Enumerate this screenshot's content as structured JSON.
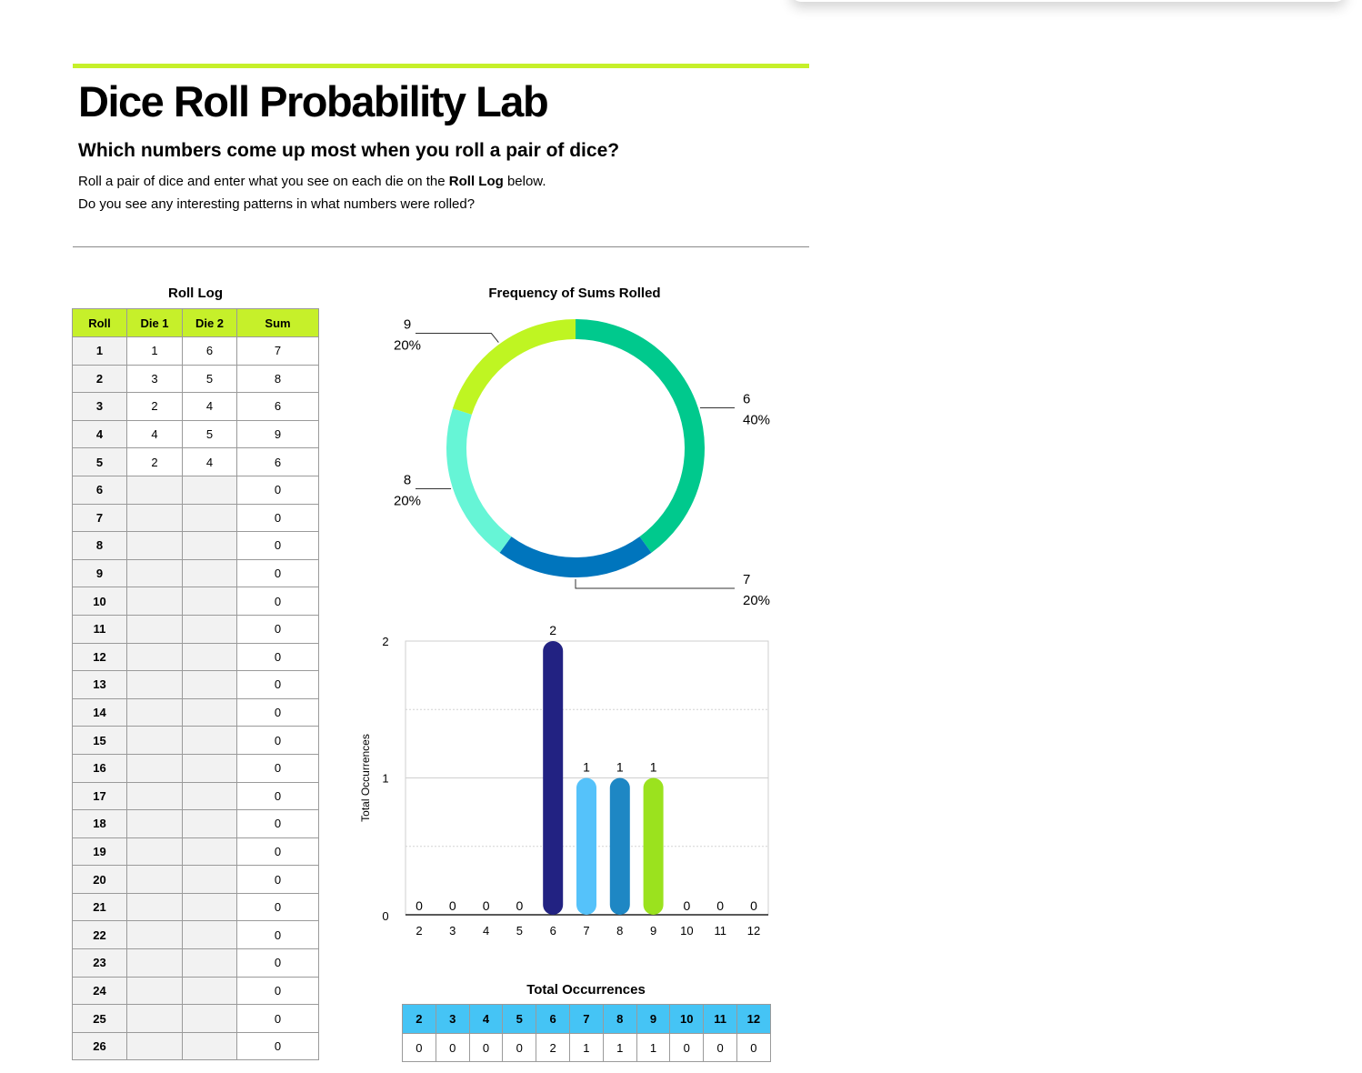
{
  "page": {
    "title": "Dice Roll Probability Lab",
    "subtitle": "Which numbers come up most when you roll a pair of dice?",
    "intro_before": "Roll a pair of dice and enter what you see on each die on the ",
    "intro_bold": "Roll Log",
    "intro_after": " below.",
    "question": "Do you see any interesting patterns in what numbers were rolled?"
  },
  "roll_log": {
    "title": "Roll Log",
    "headers": [
      "Roll",
      "Die 1",
      "Die 2",
      "Sum"
    ],
    "rows": [
      {
        "roll": "1",
        "die1": "1",
        "die2": "6",
        "sum": "7"
      },
      {
        "roll": "2",
        "die1": "3",
        "die2": "5",
        "sum": "8"
      },
      {
        "roll": "3",
        "die1": "2",
        "die2": "4",
        "sum": "6"
      },
      {
        "roll": "4",
        "die1": "4",
        "die2": "5",
        "sum": "9"
      },
      {
        "roll": "5",
        "die1": "2",
        "die2": "4",
        "sum": "6"
      },
      {
        "roll": "6",
        "die1": "",
        "die2": "",
        "sum": "0"
      },
      {
        "roll": "7",
        "die1": "",
        "die2": "",
        "sum": "0"
      },
      {
        "roll": "8",
        "die1": "",
        "die2": "",
        "sum": "0"
      },
      {
        "roll": "9",
        "die1": "",
        "die2": "",
        "sum": "0"
      },
      {
        "roll": "10",
        "die1": "",
        "die2": "",
        "sum": "0"
      },
      {
        "roll": "11",
        "die1": "",
        "die2": "",
        "sum": "0"
      },
      {
        "roll": "12",
        "die1": "",
        "die2": "",
        "sum": "0"
      },
      {
        "roll": "13",
        "die1": "",
        "die2": "",
        "sum": "0"
      },
      {
        "roll": "14",
        "die1": "",
        "die2": "",
        "sum": "0"
      },
      {
        "roll": "15",
        "die1": "",
        "die2": "",
        "sum": "0"
      },
      {
        "roll": "16",
        "die1": "",
        "die2": "",
        "sum": "0"
      },
      {
        "roll": "17",
        "die1": "",
        "die2": "",
        "sum": "0"
      },
      {
        "roll": "18",
        "die1": "",
        "die2": "",
        "sum": "0"
      },
      {
        "roll": "19",
        "die1": "",
        "die2": "",
        "sum": "0"
      },
      {
        "roll": "20",
        "die1": "",
        "die2": "",
        "sum": "0"
      },
      {
        "roll": "21",
        "die1": "",
        "die2": "",
        "sum": "0"
      },
      {
        "roll": "22",
        "die1": "",
        "die2": "",
        "sum": "0"
      },
      {
        "roll": "23",
        "die1": "",
        "die2": "",
        "sum": "0"
      },
      {
        "roll": "24",
        "die1": "",
        "die2": "",
        "sum": "0"
      },
      {
        "roll": "25",
        "die1": "",
        "die2": "",
        "sum": "0"
      },
      {
        "roll": "26",
        "die1": "",
        "die2": "",
        "sum": "0"
      }
    ]
  },
  "occurrences_table": {
    "title": "Total Occurrences",
    "sums": [
      "2",
      "3",
      "4",
      "5",
      "6",
      "7",
      "8",
      "9",
      "10",
      "11",
      "12"
    ],
    "counts": [
      "0",
      "0",
      "0",
      "0",
      "2",
      "1",
      "1",
      "1",
      "0",
      "0",
      "0"
    ]
  },
  "colors": {
    "accent_green": "#c6f02a",
    "table_header_blue": "#45c4f5",
    "slice_6": "#00c98d",
    "slice_7": "#0075bd",
    "slice_8": "#66f5d6",
    "slice_9": "#bff522",
    "bar_6": "#222282",
    "bar_7": "#55c2fa",
    "bar_8": "#1e87c4",
    "bar_9": "#9be21e"
  },
  "chart_data": [
    {
      "type": "pie",
      "title": "Frequency of Sums Rolled",
      "style": "donut",
      "slices": [
        {
          "label": "6",
          "value": 2,
          "percent_label": "40%",
          "color": "#00c98d",
          "label_side": "right"
        },
        {
          "label": "7",
          "value": 1,
          "percent_label": "20%",
          "color": "#0075bd",
          "label_side": "right"
        },
        {
          "label": "8",
          "value": 1,
          "percent_label": "20%",
          "color": "#66f5d6",
          "label_side": "left"
        },
        {
          "label": "9",
          "value": 1,
          "percent_label": "20%",
          "color": "#bff522",
          "label_side": "left"
        }
      ]
    },
    {
      "type": "bar",
      "title": "",
      "xlabel": "",
      "ylabel": "Total Occurrences",
      "categories": [
        "2",
        "3",
        "4",
        "5",
        "6",
        "7",
        "8",
        "9",
        "10",
        "11",
        "12"
      ],
      "values": [
        0,
        0,
        0,
        0,
        2,
        1,
        1,
        1,
        0,
        0,
        0
      ],
      "bar_colors": {
        "6": "#222282",
        "7": "#55c2fa",
        "8": "#1e87c4",
        "9": "#9be21e"
      },
      "ylim": [
        0,
        2
      ],
      "yticks": [
        "0",
        "1",
        "2"
      ],
      "grid": true
    }
  ]
}
